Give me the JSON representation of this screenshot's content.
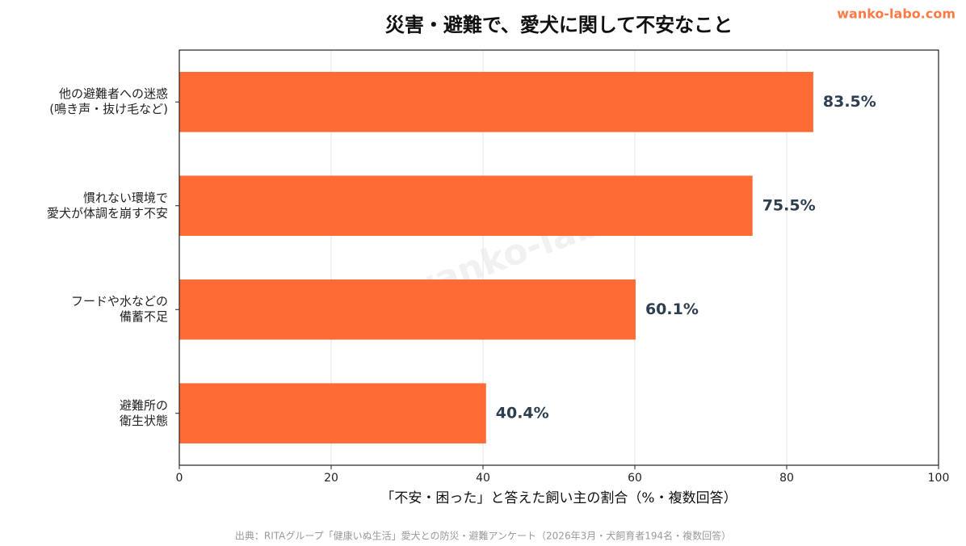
{
  "chart_data": {
    "type": "bar",
    "orientation": "horizontal",
    "title": "災害・避難で、愛犬に関して不安なこと",
    "brand": "wanko-labo.com",
    "watermark": "wanko-labo.com",
    "categories": [
      "他の避難者への迷惑\n(鳴き声・抜け毛など)",
      "慣れない環境で\n愛犬が体調を崩す不安",
      "フードや水などの\n備蓄不足",
      "避難所の\n衛生状態"
    ],
    "values": [
      83.5,
      75.5,
      60.1,
      40.4
    ],
    "value_labels": [
      "83.5%",
      "75.5%",
      "60.1%",
      "40.4%"
    ],
    "color": "#ff6b35",
    "xlabel": "「不安・困った」と答えた飼い主の割合（%・複数回答）",
    "xlim": [
      0,
      100
    ],
    "xticks": [
      0,
      20,
      40,
      60,
      80,
      100
    ],
    "grid": true,
    "source": "出典：RITAグループ「健康いぬ生活」愛犬との防災・避難アンケート（2026年3月・犬飼育者194名・複数回答）"
  }
}
